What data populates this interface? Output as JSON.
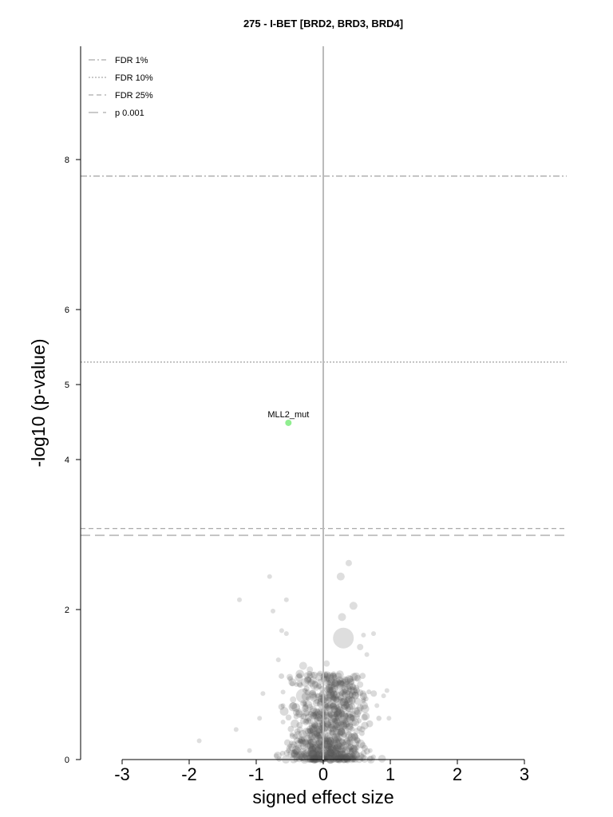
{
  "chart_data": {
    "type": "scatter",
    "title": "275 - I-BET [BRD2, BRD3, BRD4]",
    "xlabel": "signed effect size",
    "ylabel": "-log10 (p-value)",
    "xlim": [
      -3.6,
      3.6
    ],
    "ylim": [
      0,
      9.6
    ],
    "xticks": [
      "-3",
      "-2",
      "-1",
      "0",
      "1",
      "2",
      "3"
    ],
    "yticks": [
      "0",
      "2",
      "4",
      "5",
      "6",
      "8"
    ],
    "grid": false,
    "legend_position": "top-left",
    "thresholds": [
      {
        "name": "FDR 1%",
        "y": 7.78,
        "style": "dashdot",
        "color": "#aaaaaa"
      },
      {
        "name": "FDR 10%",
        "y": 5.3,
        "style": "dotted",
        "color": "#aaaaaa"
      },
      {
        "name": "FDR 25%",
        "y": 3.08,
        "style": "dashed",
        "color": "#aaaaaa"
      },
      {
        "name": "p 0.001",
        "y": 2.99,
        "style": "longdash",
        "color": "#aaaaaa"
      }
    ],
    "highlighted_point": {
      "label": "MLL2_mut",
      "x": -0.52,
      "y": 4.49,
      "color": "#90ee90"
    },
    "background_points": [
      [
        0.38,
        2.62,
        4
      ],
      [
        0.26,
        2.44,
        5
      ],
      [
        -0.8,
        2.44,
        3
      ],
      [
        -0.55,
        2.13,
        3
      ],
      [
        -1.25,
        2.13,
        3
      ],
      [
        0.45,
        2.05,
        5
      ],
      [
        -0.75,
        1.98,
        3
      ],
      [
        0.28,
        1.9,
        5
      ],
      [
        0.3,
        1.62,
        13
      ],
      [
        -0.62,
        1.72,
        3
      ],
      [
        -0.55,
        1.68,
        3
      ],
      [
        0.6,
        1.66,
        3
      ],
      [
        0.75,
        1.68,
        3
      ],
      [
        0.55,
        1.5,
        4
      ],
      [
        0.65,
        1.4,
        3
      ],
      [
        -0.67,
        1.33,
        3
      ],
      [
        0.05,
        1.28,
        4
      ],
      [
        -0.3,
        1.25,
        5
      ],
      [
        -0.2,
        1.2,
        4
      ],
      [
        -0.5,
        1.1,
        4
      ],
      [
        0.15,
        1.12,
        4
      ],
      [
        0.35,
        1.05,
        5
      ],
      [
        0.55,
        1.0,
        4
      ],
      [
        -0.9,
        0.88,
        3
      ],
      [
        0.95,
        0.92,
        3
      ],
      [
        -0.1,
        0.96,
        4
      ],
      [
        0.25,
        0.97,
        4
      ],
      [
        -0.3,
        0.85,
        9
      ],
      [
        -0.45,
        0.8,
        4
      ],
      [
        0.05,
        0.82,
        4
      ],
      [
        0.6,
        0.78,
        3
      ],
      [
        -0.6,
        0.72,
        3
      ],
      [
        0.8,
        0.72,
        3
      ],
      [
        -0.05,
        0.75,
        4
      ],
      [
        0.4,
        0.7,
        4
      ],
      [
        0.1,
        0.68,
        5
      ],
      [
        -0.25,
        0.62,
        4
      ],
      [
        0.2,
        0.6,
        4
      ],
      [
        0.45,
        0.55,
        4
      ],
      [
        -0.95,
        0.55,
        3
      ],
      [
        0.98,
        0.55,
        3
      ],
      [
        -0.6,
        0.5,
        3
      ],
      [
        0.05,
        0.5,
        6
      ],
      [
        -0.1,
        0.42,
        4
      ],
      [
        0.3,
        0.45,
        5
      ],
      [
        -0.35,
        0.4,
        4
      ],
      [
        0.5,
        0.38,
        4
      ],
      [
        -1.3,
        0.4,
        3
      ],
      [
        0.2,
        0.35,
        5
      ],
      [
        -0.05,
        0.32,
        5
      ],
      [
        0.4,
        0.28,
        4
      ],
      [
        -0.2,
        0.25,
        4
      ],
      [
        0.1,
        0.22,
        5
      ],
      [
        -1.85,
        0.25,
        3
      ],
      [
        -0.5,
        0.18,
        3
      ],
      [
        0.3,
        0.16,
        5
      ],
      [
        0.0,
        0.12,
        6
      ],
      [
        -0.15,
        0.08,
        5
      ],
      [
        0.2,
        0.06,
        6
      ],
      [
        -0.35,
        0.05,
        4
      ],
      [
        0.45,
        0.05,
        4
      ],
      [
        -0.7,
        0.05,
        3
      ],
      [
        -1.1,
        0.12,
        3
      ],
      [
        0.7,
        0.12,
        3
      ],
      [
        -0.6,
        0.9,
        3
      ],
      [
        0.9,
        0.85,
        3
      ],
      [
        -0.4,
        1.0,
        3
      ],
      [
        0.0,
        0.6,
        4
      ],
      [
        0.3,
        0.9,
        4
      ],
      [
        -0.2,
        0.7,
        4
      ],
      [
        0.1,
        0.3,
        4
      ],
      [
        0.2,
        0.8,
        4
      ],
      [
        -0.1,
        0.2,
        5
      ]
    ]
  }
}
